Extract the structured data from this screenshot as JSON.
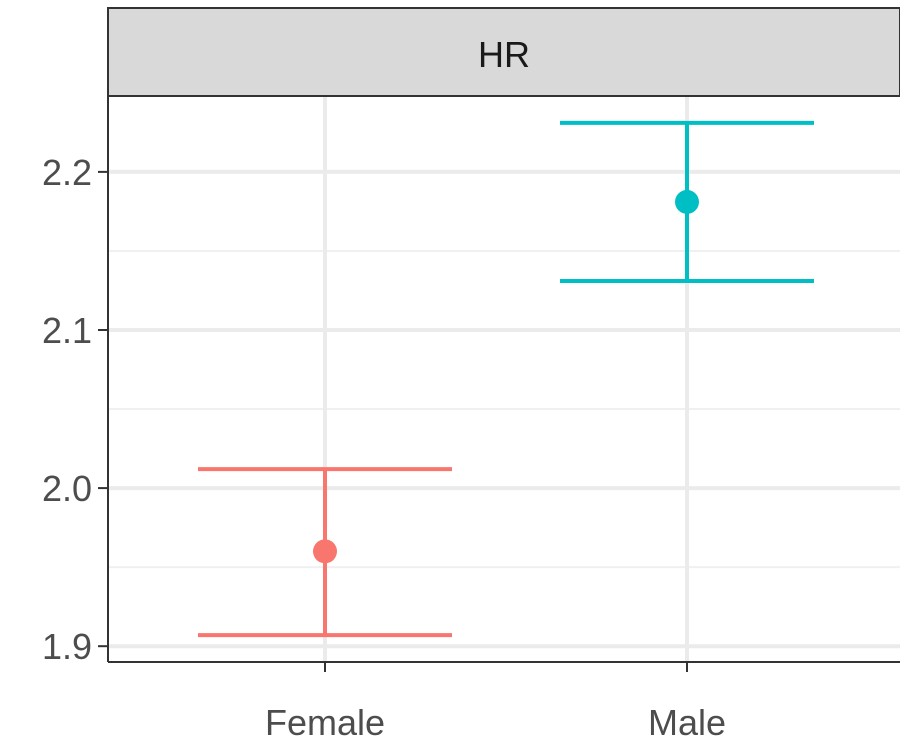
{
  "chart_data": {
    "type": "point-errorbar",
    "facet_label": "HR",
    "categories": [
      "Female",
      "Male"
    ],
    "points": [
      {
        "category": "Female",
        "estimate": 1.96,
        "lower": 1.907,
        "upper": 2.012,
        "color": "#F8766D"
      },
      {
        "category": "Male",
        "estimate": 2.181,
        "lower": 2.131,
        "upper": 2.231,
        "color": "#00BFC4"
      }
    ],
    "ylim": [
      1.89,
      2.248
    ],
    "y_ticks": [
      1.9,
      2.0,
      2.1,
      2.2
    ],
    "y_tick_labels": [
      "1.9",
      "2.0",
      "2.1",
      "2.2"
    ],
    "grid": true,
    "legend": "none"
  }
}
